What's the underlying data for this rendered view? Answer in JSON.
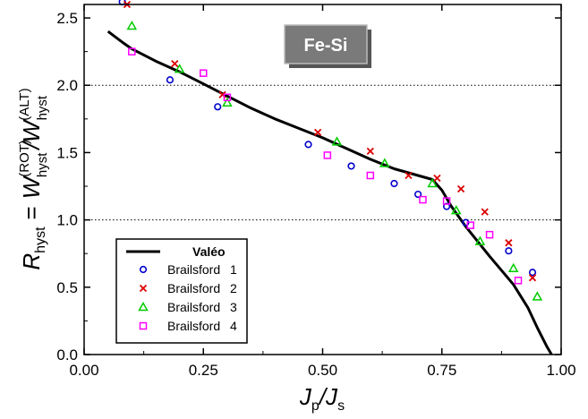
{
  "chart_data": {
    "type": "scatter",
    "xlim": [
      0.0,
      1.0
    ],
    "ylim": [
      0.0,
      2.6
    ],
    "x_ticks": [
      "0.00",
      "0.25",
      "0.50",
      "0.75",
      "1.00"
    ],
    "x_tick_values": [
      0.0,
      0.25,
      0.5,
      0.75,
      1.0
    ],
    "y_ticks": [
      "0.0",
      "0.5",
      "1.0",
      "1.5",
      "2.0",
      "2.5"
    ],
    "y_tick_values": [
      0.0,
      0.5,
      1.0,
      1.5,
      2.0,
      2.5
    ],
    "reference_lines_y": [
      1.0,
      2.0
    ],
    "xlabel": {
      "main": "J",
      "sub1": "p",
      "sep": "/J",
      "sub2": "s"
    },
    "ylabel": {
      "r": "R",
      "r_sub": "hyst",
      "eq": "=",
      "w1": "W",
      "w1_sup": "(ROT)",
      "w1_sub": "hyst",
      "slash": "/",
      "w2": "W",
      "w2_sup": "(ALT)",
      "w2_sub": "hyst"
    },
    "annotation": "Fe-Si",
    "legend_position": "bottom-left",
    "line": {
      "name": "Valéo",
      "color": "#000000",
      "x": [
        0.05,
        0.08,
        0.1,
        0.15,
        0.2,
        0.25,
        0.3,
        0.35,
        0.4,
        0.45,
        0.5,
        0.55,
        0.6,
        0.65,
        0.7,
        0.73,
        0.75,
        0.77,
        0.8,
        0.85,
        0.9,
        0.93,
        0.95,
        0.97,
        0.98
      ],
      "y": [
        2.4,
        2.32,
        2.27,
        2.18,
        2.1,
        2.01,
        1.92,
        1.83,
        1.75,
        1.68,
        1.61,
        1.53,
        1.45,
        1.38,
        1.33,
        1.3,
        1.22,
        1.1,
        0.95,
        0.73,
        0.52,
        0.35,
        0.2,
        0.06,
        0.0
      ]
    },
    "series": [
      {
        "name": "Brailsford",
        "number": "1",
        "marker": "circle",
        "color": "#0000cc",
        "x": [
          0.08,
          0.18,
          0.28,
          0.47,
          0.56,
          0.65,
          0.7,
          0.76,
          0.8,
          0.89,
          0.94
        ],
        "y": [
          2.62,
          2.04,
          1.84,
          1.56,
          1.4,
          1.27,
          1.19,
          1.1,
          0.98,
          0.77,
          0.61
        ]
      },
      {
        "name": "Brailsford",
        "number": "2",
        "marker": "x",
        "color": "#dd0000",
        "x": [
          0.09,
          0.19,
          0.29,
          0.49,
          0.6,
          0.68,
          0.74,
          0.79,
          0.84,
          0.89,
          0.94
        ],
        "y": [
          2.6,
          2.16,
          1.93,
          1.65,
          1.51,
          1.33,
          1.31,
          1.23,
          1.06,
          0.83,
          0.57
        ]
      },
      {
        "name": "Brailsford",
        "number": "3",
        "marker": "triangle",
        "color": "#00cc00",
        "x": [
          0.1,
          0.2,
          0.3,
          0.53,
          0.63,
          0.73,
          0.78,
          0.83,
          0.9,
          0.95
        ],
        "y": [
          2.44,
          2.12,
          1.87,
          1.58,
          1.42,
          1.27,
          1.07,
          0.84,
          0.64,
          0.43
        ]
      },
      {
        "name": "Brailsford",
        "number": "4",
        "marker": "square",
        "color": "#ff00ff",
        "x": [
          0.1,
          0.25,
          0.3,
          0.51,
          0.6,
          0.71,
          0.76,
          0.81,
          0.85,
          0.91
        ],
        "y": [
          2.25,
          2.09,
          1.91,
          1.48,
          1.33,
          1.15,
          1.14,
          0.96,
          0.89,
          0.55
        ]
      }
    ]
  }
}
